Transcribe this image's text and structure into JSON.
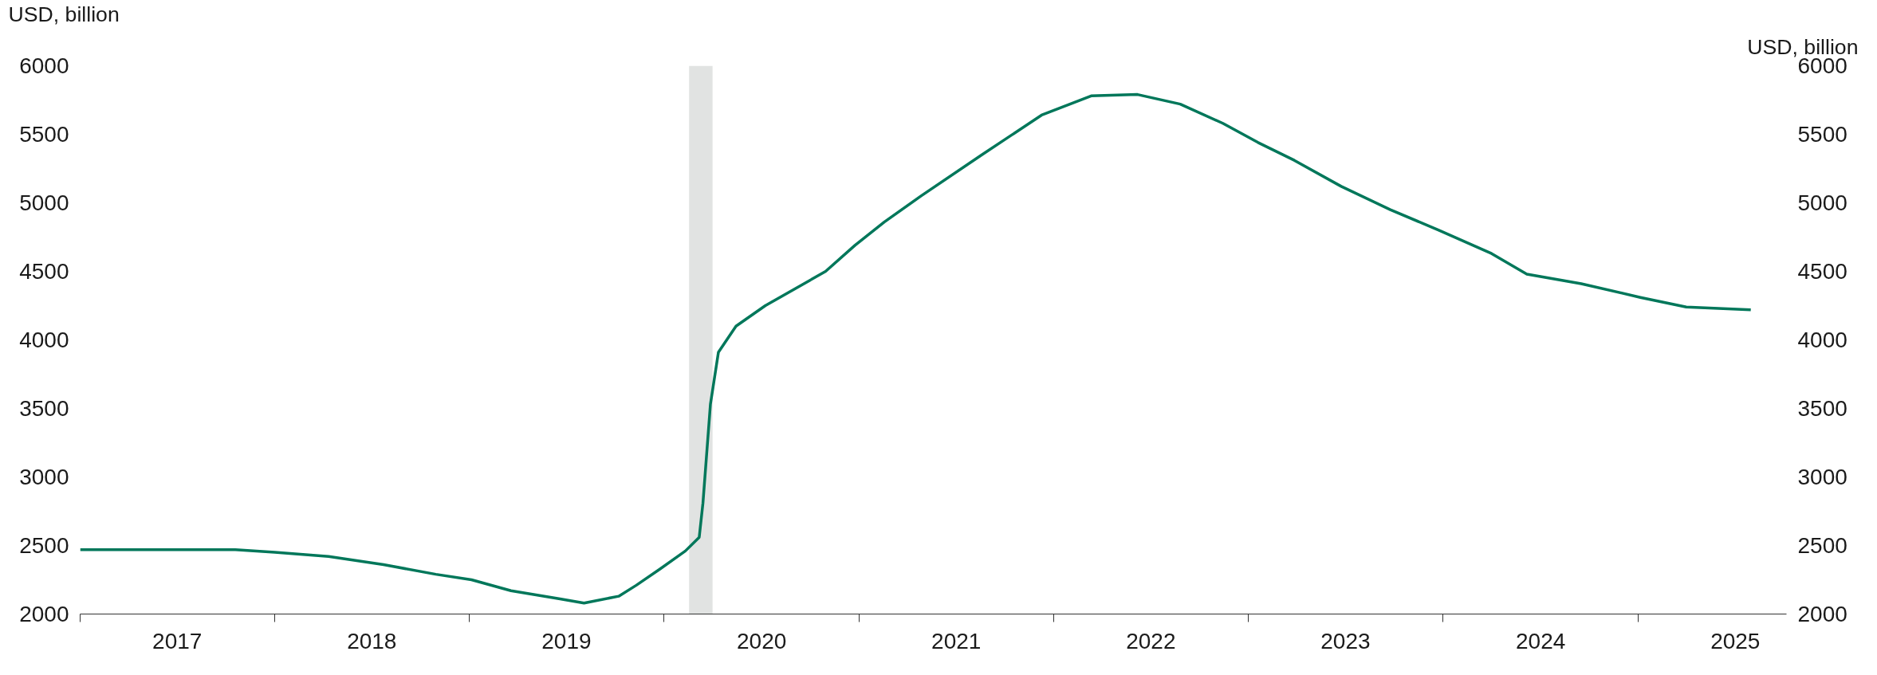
{
  "chart_data": {
    "type": "line",
    "ylabel": "USD, billion",
    "y2label": "USD, billion",
    "x": [
      "2017-01-01",
      "2017-10-19",
      "2018-01-01",
      "2018-04-12",
      "2018-07-24",
      "2018-10-30",
      "2019-01-05",
      "2019-03-20",
      "2019-06-20",
      "2019-08-04",
      "2019-10-08",
      "2019-11-10",
      "2019-12-25",
      "2020-02-10",
      "2020-03-07",
      "2020-03-14",
      "2020-03-28",
      "2020-04-12",
      "2020-05-15",
      "2020-07-09",
      "2020-10-30",
      "2020-12-24",
      "2021-02-17",
      "2021-04-27",
      "2021-08-19",
      "2021-12-09",
      "2022-03-12",
      "2022-06-07",
      "2022-08-26",
      "2022-11-14",
      "2023-01-19",
      "2023-03-28",
      "2023-06-24",
      "2023-09-24",
      "2023-12-24",
      "2024-04-01",
      "2024-06-06",
      "2024-09-16",
      "2025-01-05",
      "2025-04-01",
      "2025-07-31"
    ],
    "series": [
      {
        "color": "#00775a",
        "values": [
          2470,
          2470,
          2450,
          2420,
          2360,
          2290,
          2250,
          2170,
          2110,
          2080,
          2130,
          2210,
          2330,
          2460,
          2560,
          2810,
          3530,
          3910,
          4100,
          4250,
          4500,
          4690,
          4860,
          5050,
          5350,
          5640,
          5780,
          5790,
          5720,
          5580,
          5440,
          5310,
          5120,
          4950,
          4800,
          4630,
          4480,
          4410,
          4310,
          4240,
          4220
        ]
      }
    ],
    "xlim": [
      "2017-01-01",
      "2025-10-06"
    ],
    "xticks": [
      {
        "value": "2017-01-01",
        "label": null
      },
      {
        "value": "2017-07-02",
        "label": "2017"
      },
      {
        "value": "2018-01-01",
        "label": null
      },
      {
        "value": "2018-07-02",
        "label": "2018"
      },
      {
        "value": "2019-01-01",
        "label": null
      },
      {
        "value": "2019-07-02",
        "label": "2019"
      },
      {
        "value": "2020-01-01",
        "label": null
      },
      {
        "value": "2020-07-02",
        "label": "2020"
      },
      {
        "value": "2021-01-01",
        "label": null
      },
      {
        "value": "2021-07-02",
        "label": "2021"
      },
      {
        "value": "2022-01-01",
        "label": null
      },
      {
        "value": "2022-07-02",
        "label": "2022"
      },
      {
        "value": "2023-01-01",
        "label": null
      },
      {
        "value": "2023-07-02",
        "label": "2023"
      },
      {
        "value": "2024-01-01",
        "label": null
      },
      {
        "value": "2024-07-02",
        "label": "2024"
      },
      {
        "value": "2025-01-01",
        "label": null
      },
      {
        "value": "2025-07-02",
        "label": "2025"
      }
    ],
    "ylim": [
      2000,
      6000
    ],
    "yticks": [
      2000,
      2500,
      3000,
      3500,
      4000,
      4500,
      5000,
      5500,
      6000
    ],
    "y2lim": [
      2000,
      6000
    ],
    "y2ticks": [
      2000,
      2500,
      3000,
      3500,
      4000,
      4500,
      5000,
      5500,
      6000
    ],
    "bands": [
      {
        "axis": "x",
        "from": "2020-02-17",
        "to": "2020-04-01",
        "color": "#e1e3e2"
      }
    ],
    "grid": false,
    "marker": "none",
    "line_style": "solid"
  }
}
